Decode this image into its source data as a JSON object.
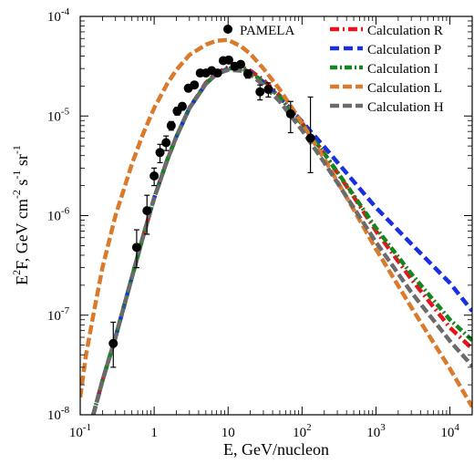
{
  "chart_data": {
    "type": "line",
    "xlabel": "E, GeV/nucleon",
    "ylabel_parts": {
      "a": "E",
      "b": "2",
      "c": "F, GeV cm",
      "d": "-2",
      "e": " s",
      "f": "-1",
      "g": " sr",
      "h": "-1"
    },
    "x_scale": "log",
    "y_scale": "log",
    "xlim": [
      0.1,
      20000
    ],
    "ylim": [
      1e-08,
      0.0001
    ],
    "x_ticks": [
      {
        "v": 0.1,
        "m": "10",
        "e": "-1"
      },
      {
        "v": 1,
        "m": "1",
        "e": ""
      },
      {
        "v": 10,
        "m": "10",
        "e": ""
      },
      {
        "v": 100,
        "m": "10",
        "e": "2"
      },
      {
        "v": 1000,
        "m": "10",
        "e": "3"
      },
      {
        "v": 10000,
        "m": "10",
        "e": "4"
      }
    ],
    "y_ticks": [
      {
        "v": 1e-08,
        "m": "10",
        "e": "-8"
      },
      {
        "v": 1e-07,
        "m": "10",
        "e": "-7"
      },
      {
        "v": 1e-06,
        "m": "10",
        "e": "-6"
      },
      {
        "v": 1e-05,
        "m": "10",
        "e": "-5"
      },
      {
        "v": 0.0001,
        "m": "10",
        "e": "-4"
      }
    ],
    "legend_position": "top-right",
    "points": {
      "name": "PAMELA",
      "color": "#000000",
      "x": [
        0.28,
        0.58,
        0.8,
        1.0,
        1.2,
        1.45,
        1.7,
        2.05,
        2.4,
        2.9,
        3.5,
        4.2,
        5.0,
        6.0,
        7.2,
        8.6,
        10.2,
        12.3,
        14.8,
        18.5,
        27,
        35,
        70,
        130
      ],
      "y": [
        5.2e-08,
        4.8e-07,
        1.12e-06,
        2.5e-06,
        4.3e-06,
        5.4e-06,
        8e-06,
        1.12e-05,
        1.25e-05,
        1.9e-05,
        2.05e-05,
        2.7e-05,
        2.7e-05,
        2.85e-05,
        2.7e-05,
        3.6e-05,
        3.65e-05,
        3.15e-05,
        3.3e-05,
        2.65e-05,
        1.75e-05,
        1.85e-05,
        1.05e-05,
        6e-06
      ],
      "err_lo": [
        3e-08,
        3e-07,
        6.5e-07,
        2e-06,
        3.4e-06,
        4.5e-06,
        7.2e-06,
        1.02e-05,
        1.15e-05,
        1.8e-05,
        1.98e-05,
        2.62e-05,
        2.62e-05,
        2.77e-05,
        2.6e-05,
        3.45e-05,
        3.55e-05,
        3.05e-05,
        3.2e-05,
        2.4e-05,
        1.45e-05,
        1.55e-05,
        6.8e-06,
        2.7e-06
      ],
      "err_hi": [
        8.5e-08,
        7.2e-07,
        1.6e-06,
        3e-06,
        5.2e-06,
        6.3e-06,
        8.8e-06,
        1.22e-05,
        1.35e-05,
        2e-05,
        2.12e-05,
        2.78e-05,
        2.78e-05,
        2.95e-05,
        2.82e-05,
        3.75e-05,
        3.75e-05,
        3.25e-05,
        3.4e-05,
        2.9e-05,
        2.05e-05,
        2.15e-05,
        1.4e-05,
        1.55e-05
      ]
    },
    "series": [
      {
        "name": "Calculation R",
        "color": "#e8141c",
        "dash": "10,4,2,4",
        "width": 4.5,
        "x": [
          0.15,
          0.2,
          0.3,
          0.5,
          0.7,
          1,
          1.5,
          2,
          3,
          5,
          7,
          10,
          15,
          20,
          30,
          50,
          100,
          200,
          500,
          1000,
          3000,
          10000,
          20000
        ],
        "y": [
          1e-08,
          2.2e-08,
          6e-08,
          2.4e-07,
          6e-07,
          1.5e-06,
          3.6e-06,
          6.2e-06,
          1.2e-05,
          2.15e-05,
          2.7e-05,
          3.1e-05,
          3.1e-05,
          2.85e-05,
          2.3e-05,
          1.6e-05,
          8.5e-06,
          4.2e-06,
          1.55e-06,
          7e-07,
          2.3e-07,
          7.5e-08,
          4.6e-08
        ]
      },
      {
        "name": "Calculation P",
        "color": "#1a2fe0",
        "dash": "10,5",
        "width": 4.5,
        "x": [
          0.15,
          0.2,
          0.3,
          0.5,
          0.7,
          1,
          1.5,
          2,
          3,
          5,
          7,
          10,
          15,
          20,
          30,
          50,
          100,
          200,
          500,
          1000,
          3000,
          10000,
          20000
        ],
        "y": [
          1e-08,
          2.2e-08,
          6e-08,
          2.4e-07,
          6e-07,
          1.5e-06,
          3.6e-06,
          6.2e-06,
          1.2e-05,
          2.1e-05,
          2.65e-05,
          3e-05,
          3e-05,
          2.75e-05,
          2.2e-05,
          1.55e-05,
          8.8e-06,
          4.9e-06,
          2.2e-06,
          1.2e-06,
          5.2e-07,
          2.1e-07,
          1.1e-07
        ]
      },
      {
        "name": "Calculation I",
        "color": "#14861e",
        "dash": "8,3,2,3",
        "width": 4.5,
        "x": [
          0.15,
          0.2,
          0.3,
          0.5,
          0.7,
          1,
          1.5,
          2,
          3,
          5,
          7,
          10,
          15,
          20,
          30,
          50,
          100,
          200,
          500,
          1000,
          3000,
          10000,
          20000
        ],
        "y": [
          1e-08,
          2.2e-08,
          6e-08,
          2.4e-07,
          6e-07,
          1.5e-06,
          3.6e-06,
          6.2e-06,
          1.2e-05,
          2.1e-05,
          2.65e-05,
          3e-05,
          3e-05,
          2.75e-05,
          2.2e-05,
          1.55e-05,
          8.3e-06,
          4.2e-06,
          1.6e-06,
          7.5e-07,
          2.6e-07,
          9e-08,
          5.6e-08
        ]
      },
      {
        "name": "Calculation L",
        "color": "#d97a2c",
        "dash": "10,4",
        "width": 4.5,
        "x": [
          0.1,
          0.12,
          0.15,
          0.2,
          0.3,
          0.5,
          0.7,
          1,
          1.5,
          2,
          3,
          5,
          7,
          10,
          15,
          20,
          30,
          50,
          100,
          200,
          500,
          1000,
          3000,
          10000,
          20000
        ],
        "y": [
          1.5e-08,
          4e-08,
          1e-07,
          3e-07,
          1e-06,
          3.3e-06,
          6.5e-06,
          1.2e-05,
          2.1e-05,
          2.9e-05,
          4.1e-05,
          5.2e-05,
          5.7e-05,
          5.8e-05,
          5e-05,
          4.2e-05,
          3e-05,
          1.85e-05,
          8.5e-06,
          3.7e-06,
          1.15e-06,
          4.6e-07,
          1.2e-07,
          2.9e-08,
          1.2e-08
        ]
      },
      {
        "name": "Calculation H",
        "color": "#6b6b6b",
        "dash": "10,4",
        "width": 4.5,
        "x": [
          0.15,
          0.2,
          0.3,
          0.5,
          0.7,
          1,
          1.5,
          2,
          3,
          5,
          7,
          10,
          15,
          20,
          30,
          50,
          100,
          200,
          500,
          1000,
          3000,
          10000,
          20000
        ],
        "y": [
          1e-08,
          2.2e-08,
          6e-08,
          2.4e-07,
          6e-07,
          1.5e-06,
          3.6e-06,
          6.2e-06,
          1.2e-05,
          2.1e-05,
          2.65e-05,
          2.9e-05,
          2.85e-05,
          2.6e-05,
          2.05e-05,
          1.4e-05,
          7.2e-06,
          3.4e-06,
          1.2e-06,
          5.4e-07,
          1.7e-07,
          5.5e-08,
          3.1e-08
        ]
      }
    ]
  }
}
